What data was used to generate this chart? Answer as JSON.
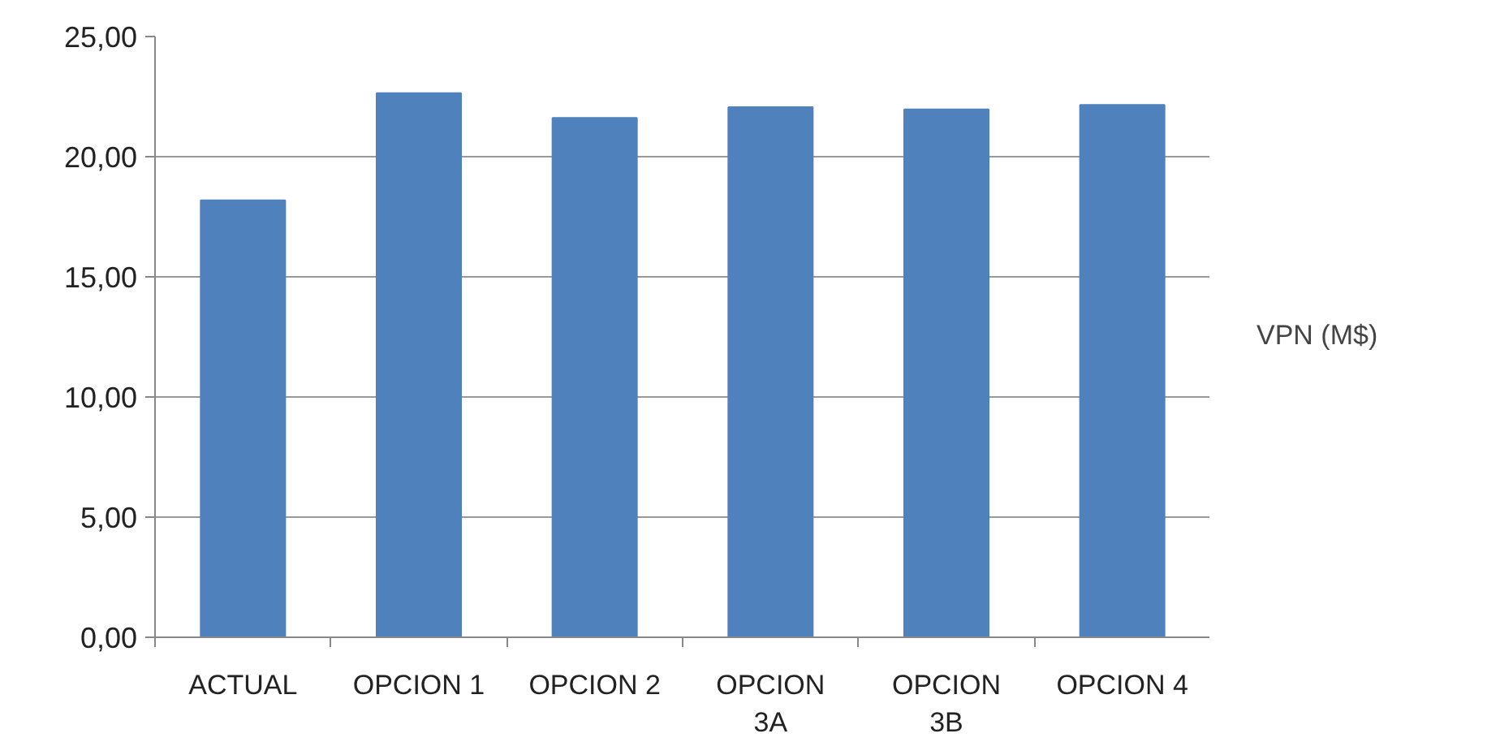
{
  "chart_data": {
    "type": "bar",
    "categories": [
      "ACTUAL",
      "OPCION 1",
      "OPCION 2",
      "OPCION 3A",
      "OPCION 3B",
      "OPCION 4"
    ],
    "series": [
      {
        "name": "VPN (M$)",
        "color": "#4f81bd",
        "values": [
          18.18,
          22.64,
          21.61,
          22.06,
          21.97,
          22.15
        ]
      }
    ],
    "ylim": [
      0,
      25
    ],
    "yticks": [
      {
        "value": 0,
        "label": "0,00"
      },
      {
        "value": 5,
        "label": "5,00"
      },
      {
        "value": 10,
        "label": "10,00"
      },
      {
        "value": 15,
        "label": "15,00"
      },
      {
        "value": 20,
        "label": "20,00"
      },
      {
        "value": 25,
        "label": "25,00"
      }
    ],
    "grid": "y",
    "legend": "right"
  }
}
